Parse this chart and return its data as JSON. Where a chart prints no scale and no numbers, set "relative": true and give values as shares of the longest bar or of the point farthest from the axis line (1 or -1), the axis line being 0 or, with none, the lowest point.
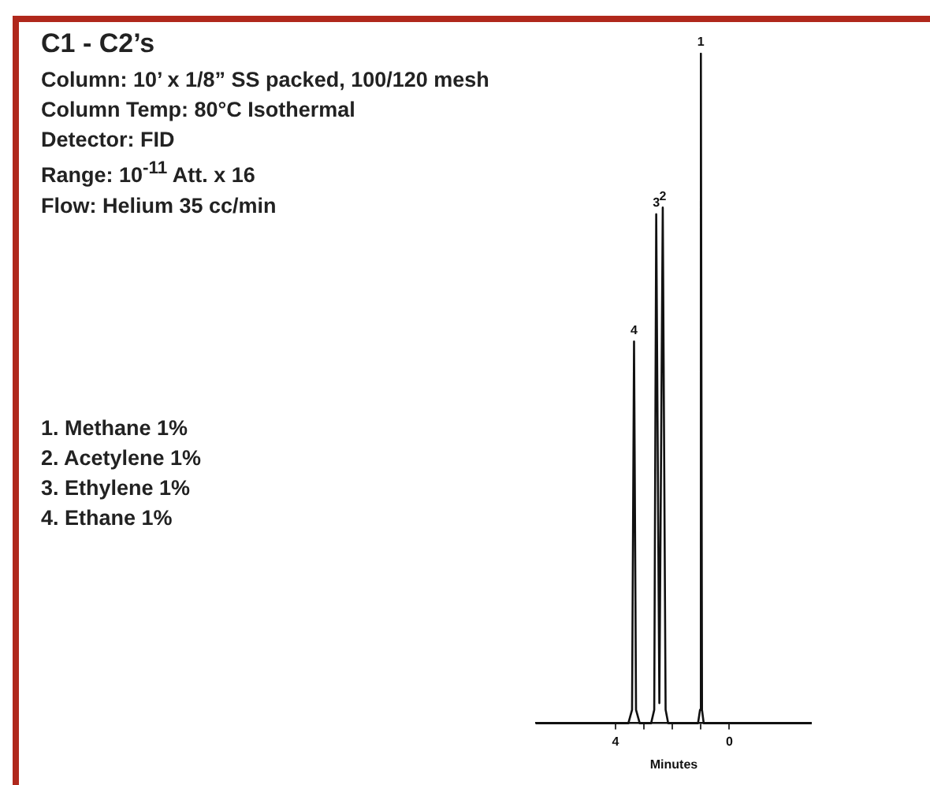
{
  "chart_data": {
    "type": "line",
    "title": "C1 - C2’s",
    "subtitle": "Column: 10’ x 1/8” SS packed, 100/120 mesh\nColumn Temp: 80°C Isothermal\nDetector: FID\nRange: 10$^{-11}$ Att. x 16\nFlow: Helium 35 cc/min",
    "xlabel": "Minutes",
    "annotations": [
      "1. Methane 1%",
      "2. Acetylene 1%",
      "3. Ethylene 1%",
      "4. Ethane 1%",
      {
        "text": "1",
        "x": 1.0,
        "y": 1
      },
      {
        "text": "2",
        "x": 2.34,
        "y": 0.77
      },
      {
        "text": "3",
        "x": 2.57,
        "y": 0.76
      },
      {
        "text": "4",
        "x": 3.35,
        "y": 0.57
      }
    ],
    "relative": true,
    "color": "#111111",
    "marker": "none",
    "line_style": "solid",
    "x": [
      6.8,
      3.55,
      3.42,
      3.35,
      3.28,
      3.15,
      2.75,
      2.64,
      2.57,
      2.46,
      2.34,
      2.24,
      2.15,
      1.1,
      1.03,
      1.0,
      0.96,
      0.9,
      -2.9
    ],
    "values": [
      0,
      0,
      0.02,
      0.57,
      0.02,
      0,
      0,
      0.02,
      0.76,
      0.03,
      0.77,
      0.02,
      0,
      0,
      0.02,
      1,
      0.02,
      0,
      0
    ],
    "xlim": [
      6.8,
      -2.9
    ],
    "xticks": [
      4,
      {
        "value": 3,
        "label": null
      },
      {
        "value": 2,
        "label": null
      },
      {
        "value": 1,
        "label": null
      },
      0
    ]
  }
}
